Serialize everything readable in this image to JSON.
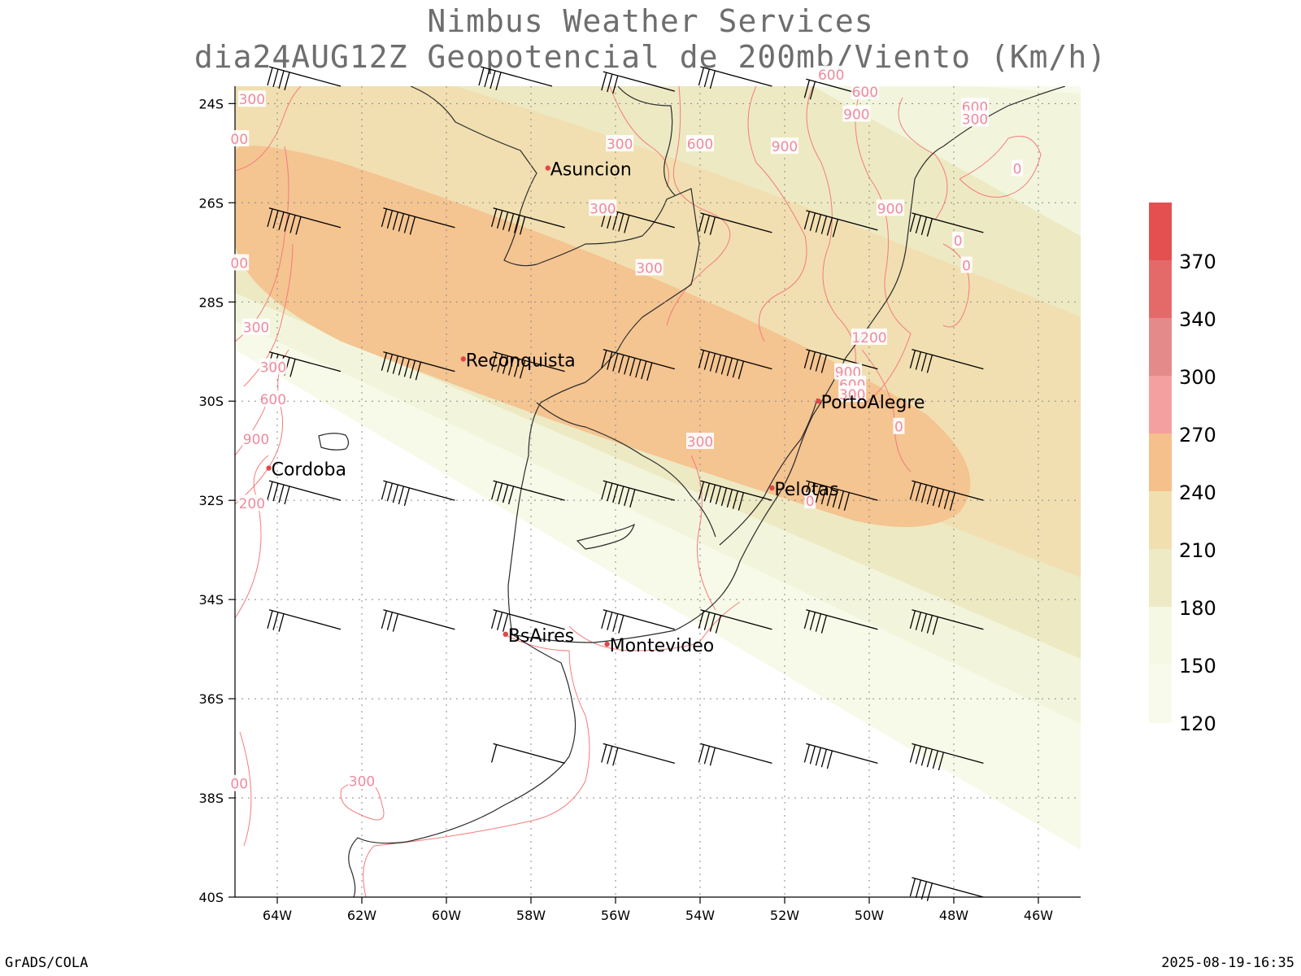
{
  "title_line1": "Nimbus Weather Services",
  "title_line2": "dia24AUG12Z Geopotencial de 200mb/Viento (Km/h)",
  "footer_left": "GrADS/COLA",
  "footer_right": "2025-08-19-16:35",
  "axes": {
    "lat_labels": [
      "24S",
      "26S",
      "28S",
      "30S",
      "32S",
      "34S",
      "36S",
      "38S",
      "40S"
    ],
    "lon_labels": [
      "64W",
      "62W",
      "60W",
      "58W",
      "56W",
      "54W",
      "52W",
      "50W",
      "48W",
      "46W"
    ]
  },
  "colorbar": {
    "labels": [
      "370",
      "340",
      "300",
      "270",
      "240",
      "210",
      "180",
      "150",
      "120"
    ],
    "colors": [
      "#e45050",
      "#e46a6a",
      "#e48a8a",
      "#f5a0a0",
      "#f5c08c",
      "#f2dfb0",
      "#eeeac6",
      "#f5f8e2",
      "#f8fbec"
    ]
  },
  "wind_speed_band_colors": {
    "120_150": "#f7fae8",
    "150_180": "#f2f5dc",
    "180_210": "#ede9c3",
    "210_240": "#f1dfb1",
    "240_270": "#f4c491"
  },
  "cities": [
    {
      "name": "Asuncion",
      "lon": -57.6,
      "lat": -25.3
    },
    {
      "name": "Reconquista",
      "lon": -59.6,
      "lat": -29.15
    },
    {
      "name": "PortoAlegre",
      "lon": -51.2,
      "lat": -30.0
    },
    {
      "name": "Cordoba",
      "lon": -64.2,
      "lat": -31.35
    },
    {
      "name": "Pelotas",
      "lon": -52.3,
      "lat": -31.75
    },
    {
      "name": "BsAires",
      "lon": -58.6,
      "lat": -34.7
    },
    {
      "name": "Montevideo",
      "lon": -56.2,
      "lat": -34.9
    }
  ],
  "contour_labels": [
    {
      "text": "300",
      "lon": -64.6,
      "lat": -23.9
    },
    {
      "text": "300",
      "lon": -55.9,
      "lat": -24.8
    },
    {
      "text": "600",
      "lon": -54.0,
      "lat": -24.8
    },
    {
      "text": "900",
      "lon": -52.0,
      "lat": -24.85
    },
    {
      "text": "600",
      "lon": -50.1,
      "lat": -23.75
    },
    {
      "text": "900",
      "lon": -50.3,
      "lat": -24.2
    },
    {
      "text": "600",
      "lon": -47.5,
      "lat": -24.05
    },
    {
      "text": "300",
      "lon": -47.5,
      "lat": -24.3
    },
    {
      "text": "600",
      "lon": -50.9,
      "lat": -23.4
    },
    {
      "text": "0",
      "lon": -46.5,
      "lat": -25.3
    },
    {
      "text": "900",
      "lon": -49.5,
      "lat": -26.1
    },
    {
      "text": "300",
      "lon": -56.3,
      "lat": -26.1
    },
    {
      "text": "0",
      "lon": -47.9,
      "lat": -26.75
    },
    {
      "text": "0",
      "lon": -47.7,
      "lat": -27.25
    },
    {
      "text": "300",
      "lon": -55.2,
      "lat": -27.3
    },
    {
      "text": "1200",
      "lon": -50.0,
      "lat": -28.7
    },
    {
      "text": "900",
      "lon": -50.5,
      "lat": -29.4
    },
    {
      "text": "600",
      "lon": -50.4,
      "lat": -29.65
    },
    {
      "text": "300",
      "lon": -50.4,
      "lat": -29.85
    },
    {
      "text": "0",
      "lon": -49.3,
      "lat": -30.5
    },
    {
      "text": "300",
      "lon": -54.0,
      "lat": -30.8
    },
    {
      "text": "0",
      "lon": -51.4,
      "lat": -32.0
    },
    {
      "text": "300",
      "lon": -64.1,
      "lat": -29.3
    },
    {
      "text": "600",
      "lon": -64.1,
      "lat": -29.95
    },
    {
      "text": "900",
      "lon": -64.5,
      "lat": -30.75
    },
    {
      "text": "200",
      "lon": -64.6,
      "lat": -32.05
    },
    {
      "text": "300",
      "lon": -64.5,
      "lat": -28.5
    },
    {
      "text": "300",
      "lon": -62.0,
      "lat": -37.65
    },
    {
      "text": "00",
      "lon": -64.9,
      "lat": -37.7
    },
    {
      "text": "00",
      "lon": -64.9,
      "lat": -27.2
    },
    {
      "text": "00",
      "lon": -64.9,
      "lat": -24.7
    }
  ],
  "wind_barbs": [
    {
      "lon": -62.5,
      "lat": -23.65,
      "n": 4
    },
    {
      "lon": -57.5,
      "lat": -23.65,
      "n": 4
    },
    {
      "lon": -54.6,
      "lat": -23.75,
      "n": 3
    },
    {
      "lon": -52.3,
      "lat": -23.65,
      "n": 3
    },
    {
      "lon": -49.8,
      "lat": -23.9,
      "n": 2
    },
    {
      "lon": -62.5,
      "lat": -26.5,
      "n": 6
    },
    {
      "lon": -59.8,
      "lat": -26.5,
      "n": 6
    },
    {
      "lon": -57.2,
      "lat": -26.5,
      "n": 6
    },
    {
      "lon": -54.6,
      "lat": -26.5,
      "n": 5
    },
    {
      "lon": -52.3,
      "lat": -26.6,
      "n": 3
    },
    {
      "lon": -49.8,
      "lat": -26.55,
      "n": 6
    },
    {
      "lon": -47.3,
      "lat": -26.6,
      "n": 4
    },
    {
      "lon": -62.5,
      "lat": -29.4,
      "n": 5
    },
    {
      "lon": -59.8,
      "lat": -29.4,
      "n": 7
    },
    {
      "lon": -57.2,
      "lat": -29.4,
      "n": 6
    },
    {
      "lon": -54.6,
      "lat": -29.35,
      "n": 9
    },
    {
      "lon": -52.3,
      "lat": -29.35,
      "n": 8
    },
    {
      "lon": -49.8,
      "lat": -29.35,
      "n": 4
    },
    {
      "lon": -47.3,
      "lat": -29.35,
      "n": 4
    },
    {
      "lon": -62.5,
      "lat": -32.0,
      "n": 4
    },
    {
      "lon": -59.8,
      "lat": -32.0,
      "n": 5
    },
    {
      "lon": -57.2,
      "lat": -32.0,
      "n": 4
    },
    {
      "lon": -54.6,
      "lat": -32.0,
      "n": 6
    },
    {
      "lon": -52.3,
      "lat": -32.0,
      "n": 8
    },
    {
      "lon": -49.8,
      "lat": -32.0,
      "n": 8
    },
    {
      "lon": -47.3,
      "lat": -32.0,
      "n": 8
    },
    {
      "lon": -62.5,
      "lat": -34.6,
      "n": 3
    },
    {
      "lon": -59.8,
      "lat": -34.6,
      "n": 3
    },
    {
      "lon": -57.2,
      "lat": -34.6,
      "n": 3
    },
    {
      "lon": -54.6,
      "lat": -34.6,
      "n": 4
    },
    {
      "lon": -52.3,
      "lat": -34.6,
      "n": 4
    },
    {
      "lon": -49.8,
      "lat": -34.6,
      "n": 4
    },
    {
      "lon": -47.3,
      "lat": -34.6,
      "n": 5
    },
    {
      "lon": -57.2,
      "lat": -37.3,
      "n": 1
    },
    {
      "lon": -54.6,
      "lat": -37.3,
      "n": 3
    },
    {
      "lon": -52.3,
      "lat": -37.3,
      "n": 3
    },
    {
      "lon": -49.8,
      "lat": -37.3,
      "n": 5
    },
    {
      "lon": -47.3,
      "lat": -37.3,
      "n": 6
    },
    {
      "lon": -47.3,
      "lat": -40.0,
      "n": 4
    }
  ]
}
